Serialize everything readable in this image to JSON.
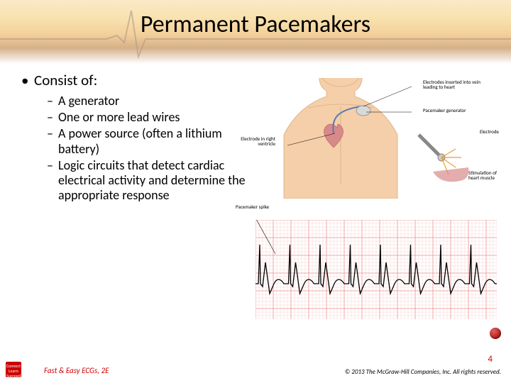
{
  "title": "Permanent Pacemakers",
  "bullets": {
    "main": "Consist of:",
    "subs": [
      "A generator",
      "One or more lead wires",
      "A power source (often a lithium battery)",
      "Logic circuits that detect cardiac electrical activity and determine the appropriate response"
    ]
  },
  "figure_labels": {
    "top_right1": "Electrodes inserted into vein leading to heart",
    "top_right2": "Pacemaker generator",
    "mid_right": "Electrode",
    "bot_right": "Stimulation of heart muscle",
    "left_label": "Electrode in right ventricle",
    "spike_label": "Pacemaker spike"
  },
  "ecg": {
    "grid_major": "#ef8f8f",
    "grid_minor": "#f7c9c9",
    "trace_color": "#000000",
    "bg": "#ffffff",
    "beats": 8
  },
  "colors": {
    "accent_red": "#cc0000",
    "title_text": "#000000",
    "skin": "#f4cfa9",
    "skin_shadow": "#e1b68a",
    "heart": "#d88a8a",
    "ecg_bg_band1": "#f8d99a",
    "ecg_bg_band2": "#e9a84a"
  },
  "footer": {
    "left": "Fast & Easy ECGs, 2E",
    "right": "© 2013 The McGraw-Hill Companies, Inc. All rights reserved.",
    "page": "4",
    "logo_text": "Connect Learn Succeed"
  }
}
